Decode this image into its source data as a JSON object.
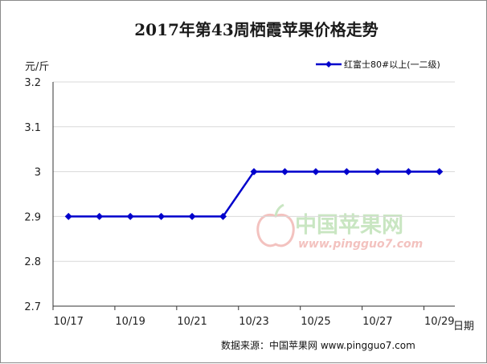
{
  "chart_data": {
    "type": "line",
    "title": "2017年第43周栖霞苹果价格走势",
    "ylabel": "元/斤",
    "xlabel": "日期",
    "ylim": [
      2.7,
      3.2
    ],
    "yticks": [
      "2.7",
      "2.8",
      "2.9",
      "3",
      "3.1",
      "3.2"
    ],
    "x": [
      "10/17",
      "10/18",
      "10/19",
      "10/20",
      "10/21",
      "10/22",
      "10/23",
      "10/24",
      "10/25",
      "10/26",
      "10/27",
      "10/28",
      "10/29"
    ],
    "xtick_labels": [
      "10/17",
      "10/19",
      "10/21",
      "10/23",
      "10/25",
      "10/27",
      "10/29"
    ],
    "series": [
      {
        "name": "红富士80#以上(一二级)",
        "values": [
          2.9,
          2.9,
          2.9,
          2.9,
          2.9,
          2.9,
          3.0,
          3.0,
          3.0,
          3.0,
          3.0,
          3.0,
          3.0
        ],
        "color": "#0000cc"
      }
    ],
    "grid": true,
    "legend": "top-right",
    "source": "数据来源：中国苹果网 www.pingguo7.com"
  },
  "watermark": {
    "text": "中国苹果网",
    "url": "www.pingguo7.com",
    "text_color": "#c9e6c2",
    "url_color": "#f3c2bf"
  }
}
